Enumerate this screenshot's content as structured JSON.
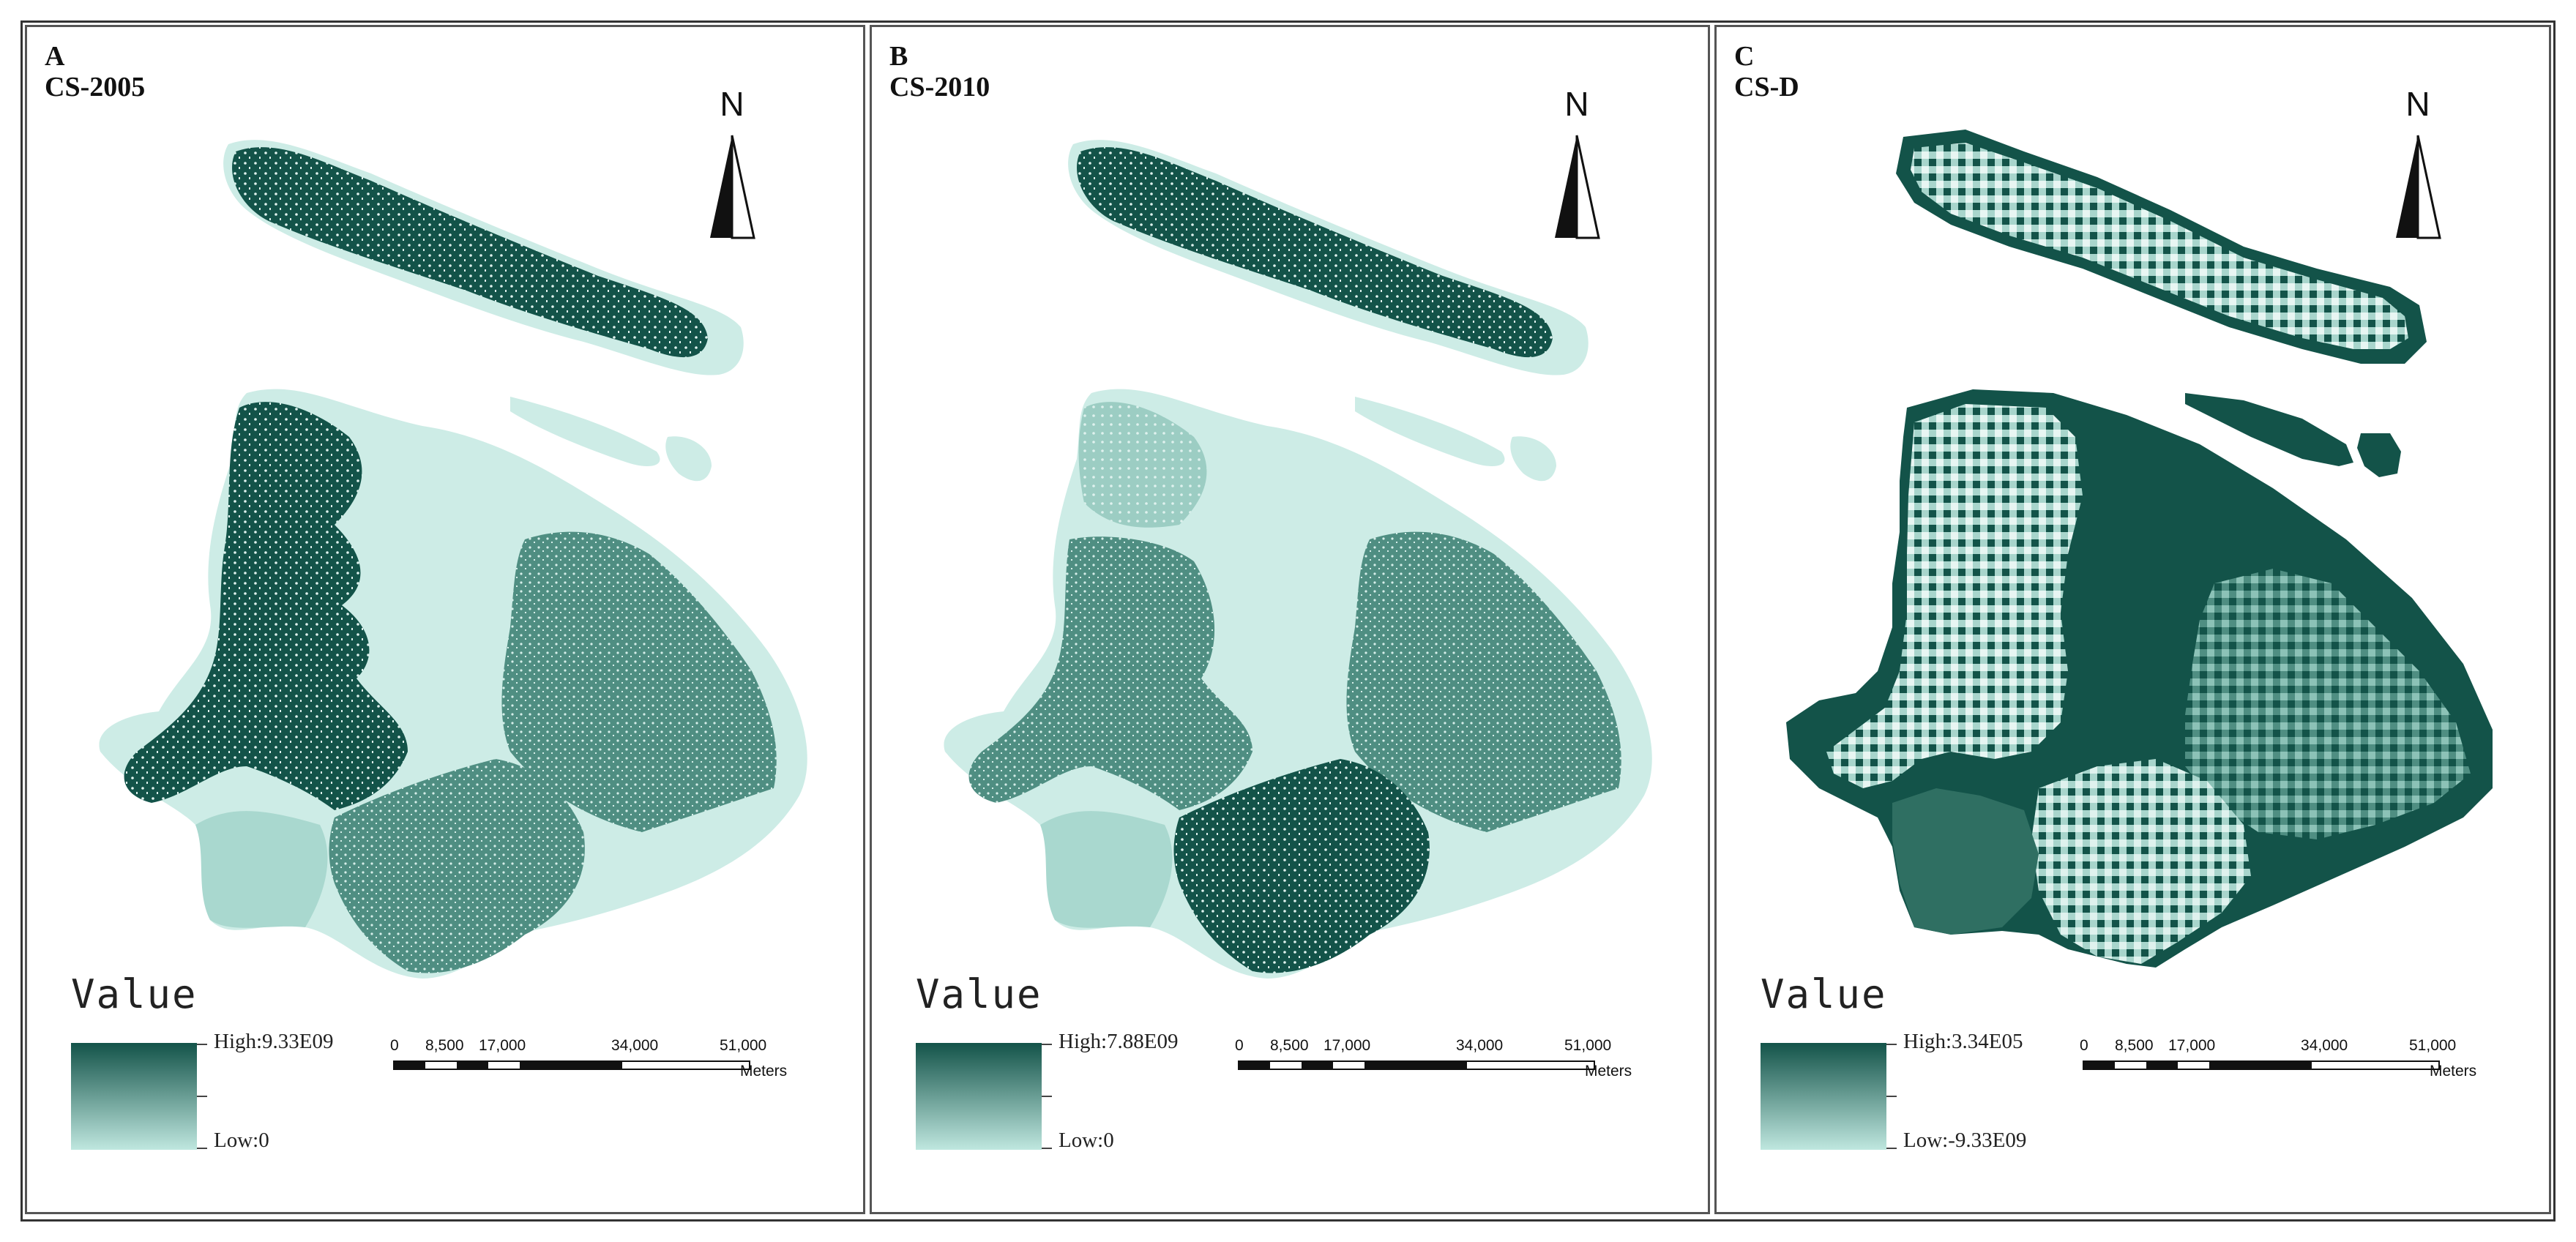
{
  "colors": {
    "low": "#bfe7df",
    "mid": "#5a9b8d",
    "high": "#135349",
    "border": "#555555"
  },
  "north_label": "N",
  "scale_bar": {
    "ticks": [
      "0",
      "8,500",
      "17,000",
      "34,000",
      "51,000"
    ],
    "unit": "Meters"
  },
  "legend_title": "Value",
  "panels": [
    {
      "letter": "A",
      "title": "CS-2005",
      "high_label": "High:9.33E09",
      "low_label": "Low:0"
    },
    {
      "letter": "B",
      "title": "CS-2010",
      "high_label": "High:7.88E09",
      "low_label": "Low:0"
    },
    {
      "letter": "C",
      "title": "CS-D",
      "high_label": "High:3.34E05",
      "low_label": "Low:-9.33E09"
    }
  ]
}
